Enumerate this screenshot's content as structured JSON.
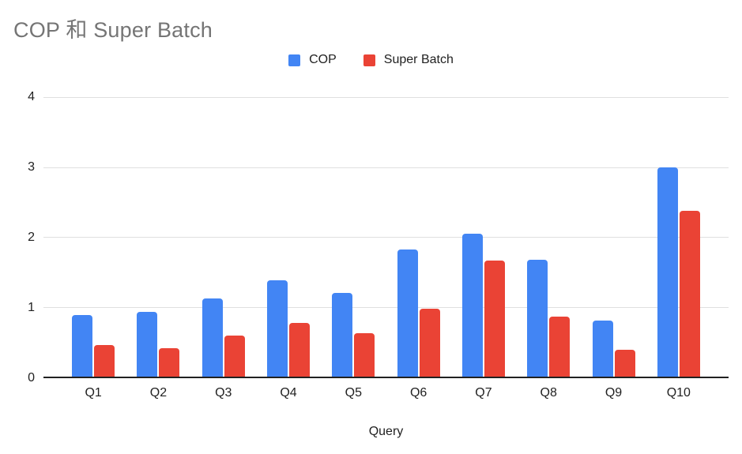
{
  "title": "COP 和 Super Batch",
  "legend": {
    "items": [
      {
        "label": "COP",
        "color": "#4285F4"
      },
      {
        "label": "Super Batch",
        "color": "#EA4335"
      }
    ]
  },
  "colors": {
    "background": "#ffffff",
    "title_text": "#757575",
    "tick_text": "#212121",
    "gridline": "#e0e0e0",
    "axis_line": "#212121",
    "series_cop": "#4285F4",
    "series_super_batch": "#EA4335"
  },
  "chart_data": {
    "type": "bar",
    "title": "COP 和 Super Batch",
    "categories": [
      "Q1",
      "Q2",
      "Q3",
      "Q4",
      "Q5",
      "Q6",
      "Q7",
      "Q8",
      "Q9",
      "Q10"
    ],
    "series": [
      {
        "name": "COP",
        "color": "#4285F4",
        "values": [
          0.88,
          0.93,
          1.12,
          1.38,
          1.2,
          1.82,
          2.05,
          1.67,
          0.8,
          3.0
        ]
      },
      {
        "name": "Super Batch",
        "color": "#EA4335",
        "values": [
          0.45,
          0.41,
          0.59,
          0.77,
          0.62,
          0.97,
          1.66,
          0.86,
          0.39,
          2.37
        ]
      }
    ],
    "xlabel": "Query",
    "ylabel": "",
    "ylim": [
      0,
      4
    ],
    "yticks": [
      0,
      1,
      2,
      3,
      4
    ],
    "grid": true,
    "legend_position": "top"
  }
}
